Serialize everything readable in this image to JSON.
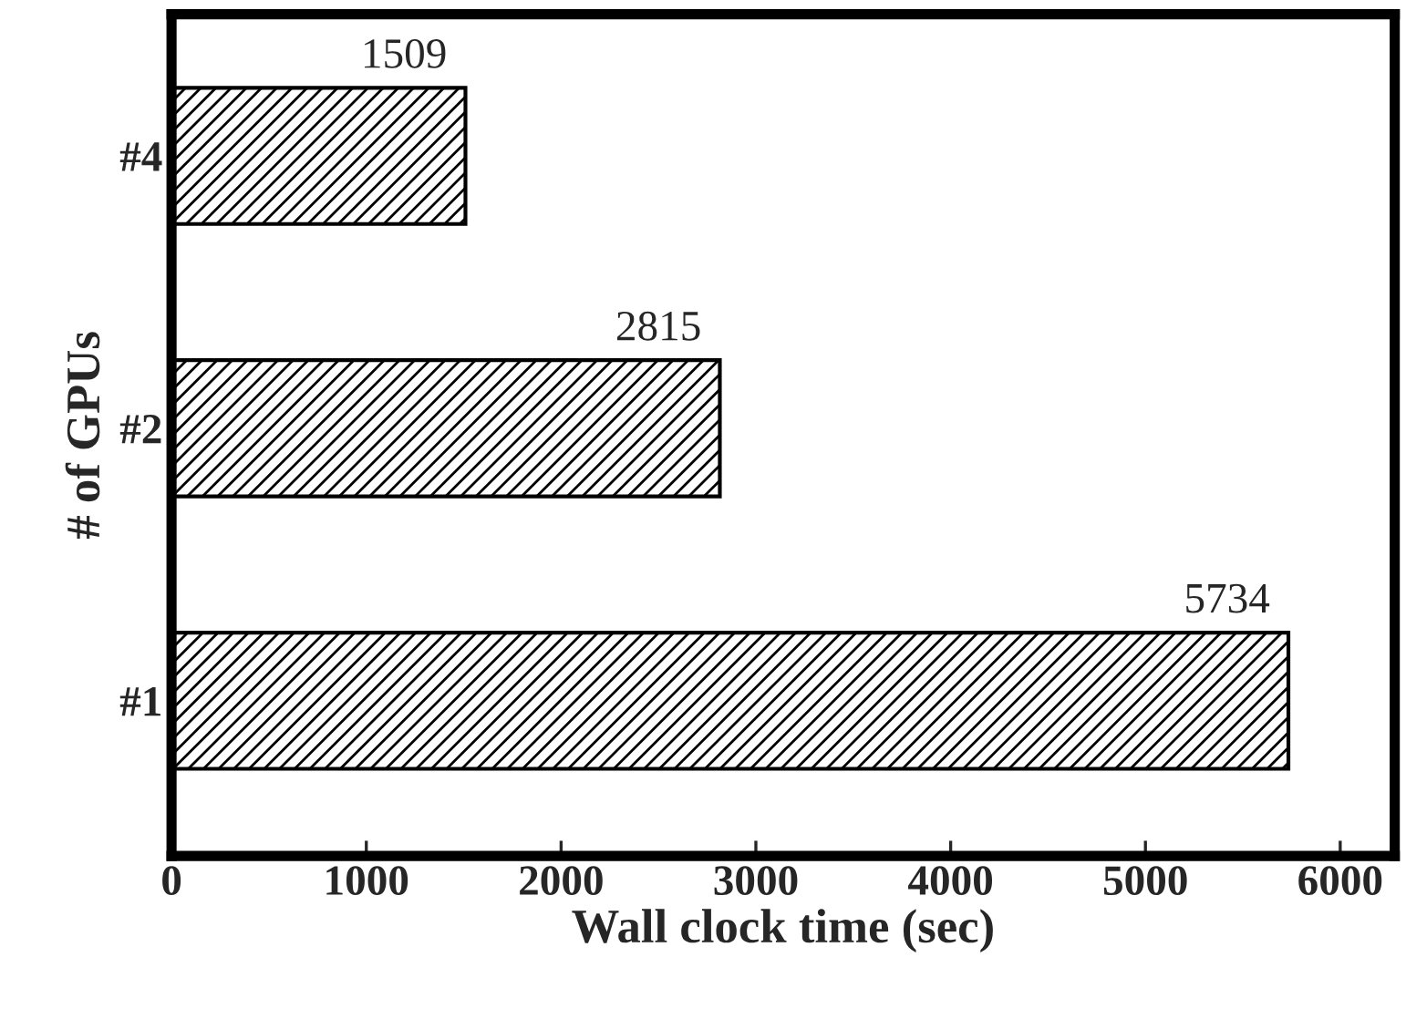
{
  "chart_data": {
    "type": "bar",
    "orientation": "horizontal",
    "xlabel": "Wall clock time (sec)",
    "ylabel": "# of GPUs",
    "categories": [
      "#4",
      "#2",
      "#1"
    ],
    "values": [
      1509,
      2815,
      5734
    ],
    "color": "#000000",
    "xlim": [
      0,
      6280
    ],
    "xticks": [
      0,
      1000,
      2000,
      3000,
      4000,
      5000,
      6000
    ],
    "data_labels": true,
    "grid": false,
    "legend": false
  }
}
